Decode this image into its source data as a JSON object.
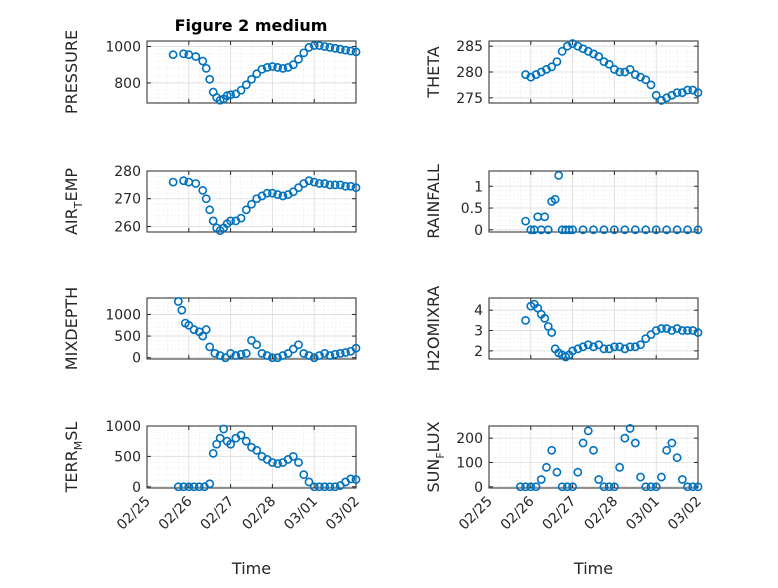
{
  "figure_title": "Figure 2 medium",
  "x_axis_title": "Time",
  "accent_color": "#0072BD",
  "x_tick_labels": [
    "02/25",
    "02/26",
    "02/27",
    "02/28",
    "03/01",
    "03/02"
  ],
  "chart_data": [
    {
      "type": "scatter",
      "id": "pressure",
      "ylabel": "PRESSURE",
      "xlim": [
        "02/25",
        "03/02"
      ],
      "ylim": [
        690,
        1030
      ],
      "yticks": [
        800,
        1000
      ],
      "grid": true,
      "x": [
        "02/25 15:00",
        "02/25 21:00",
        "02/26 00:00",
        "02/26 04:00",
        "02/26 08:00",
        "02/26 10:00",
        "02/26 12:00",
        "02/26 14:00",
        "02/26 16:00",
        "02/26 18:00",
        "02/26 20:00",
        "02/26 22:00",
        "02/27 00:00",
        "02/27 03:00",
        "02/27 06:00",
        "02/27 09:00",
        "02/27 12:00",
        "02/27 15:00",
        "02/27 18:00",
        "02/27 21:00",
        "02/28 00:00",
        "02/28 03:00",
        "02/28 06:00",
        "02/28 09:00",
        "02/28 12:00",
        "02/28 15:00",
        "02/28 18:00",
        "02/28 21:00",
        "03/01 00:00",
        "03/01 03:00",
        "03/01 06:00",
        "03/01 09:00",
        "03/01 12:00",
        "03/01 15:00",
        "03/01 18:00",
        "03/01 21:00",
        "03/02 00:00"
      ],
      "y": [
        955,
        960,
        955,
        945,
        920,
        880,
        820,
        750,
        720,
        705,
        712,
        730,
        735,
        740,
        760,
        790,
        820,
        850,
        875,
        885,
        890,
        885,
        880,
        885,
        900,
        930,
        965,
        995,
        1005,
        1005,
        1000,
        995,
        990,
        985,
        980,
        975,
        970
      ]
    },
    {
      "type": "scatter",
      "id": "theta",
      "ylabel": "THETA",
      "xlim": [
        "02/25",
        "03/02"
      ],
      "ylim": [
        274,
        286
      ],
      "yticks": [
        275,
        280,
        285
      ],
      "grid": true,
      "x": [
        "02/25 21:00",
        "02/26 00:00",
        "02/26 03:00",
        "02/26 06:00",
        "02/26 09:00",
        "02/26 12:00",
        "02/26 15:00",
        "02/26 18:00",
        "02/26 21:00",
        "02/27 00:00",
        "02/27 03:00",
        "02/27 06:00",
        "02/27 09:00",
        "02/27 12:00",
        "02/27 15:00",
        "02/27 18:00",
        "02/27 21:00",
        "02/28 00:00",
        "02/28 03:00",
        "02/28 06:00",
        "02/28 09:00",
        "02/28 12:00",
        "02/28 15:00",
        "02/28 18:00",
        "02/28 21:00",
        "03/01 00:00",
        "03/01 03:00",
        "03/01 06:00",
        "03/01 09:00",
        "03/01 12:00",
        "03/01 15:00",
        "03/01 18:00",
        "03/01 21:00",
        "03/02 00:00"
      ],
      "y": [
        279.5,
        279,
        279.5,
        280,
        280.5,
        281,
        282,
        284,
        285,
        285.5,
        285,
        284.5,
        284,
        283.5,
        283,
        282,
        281.5,
        280.5,
        280,
        280,
        280.5,
        279.5,
        279,
        278.5,
        277.5,
        275.5,
        274.5,
        275,
        275.5,
        276,
        276,
        276.5,
        276.5,
        276
      ]
    },
    {
      "type": "scatter",
      "id": "air_temp",
      "ylabel": "AIR_TEMP",
      "xlim": [
        "02/25",
        "03/02"
      ],
      "ylim": [
        258,
        280
      ],
      "yticks": [
        260,
        270,
        280
      ],
      "grid": true,
      "x": [
        "02/25 15:00",
        "02/25 21:00",
        "02/26 00:00",
        "02/26 04:00",
        "02/26 08:00",
        "02/26 10:00",
        "02/26 12:00",
        "02/26 14:00",
        "02/26 16:00",
        "02/26 18:00",
        "02/26 20:00",
        "02/26 22:00",
        "02/27 00:00",
        "02/27 03:00",
        "02/27 06:00",
        "02/27 09:00",
        "02/27 12:00",
        "02/27 15:00",
        "02/27 18:00",
        "02/27 21:00",
        "02/28 00:00",
        "02/28 03:00",
        "02/28 06:00",
        "02/28 09:00",
        "02/28 12:00",
        "02/28 15:00",
        "02/28 18:00",
        "02/28 21:00",
        "03/01 00:00",
        "03/01 03:00",
        "03/01 06:00",
        "03/01 09:00",
        "03/01 12:00",
        "03/01 15:00",
        "03/01 18:00",
        "03/01 21:00",
        "03/02 00:00"
      ],
      "y": [
        276,
        276.5,
        276,
        275.5,
        273,
        270,
        266,
        262,
        259.5,
        258.5,
        259.5,
        261,
        262,
        262,
        263,
        266,
        268,
        270,
        271,
        272,
        272,
        271.5,
        271,
        271.5,
        272.5,
        274,
        275.5,
        276.5,
        276,
        275.5,
        275.5,
        275,
        275,
        275,
        274.5,
        274.5,
        274
      ]
    },
    {
      "type": "scatter",
      "id": "rainfall",
      "ylabel": "RAINFALL",
      "xlim": [
        "02/25",
        "03/02"
      ],
      "ylim": [
        -0.05,
        1.35
      ],
      "yticks": [
        0,
        0.5,
        1
      ],
      "grid": true,
      "x": [
        "02/25 21:00",
        "02/26 00:00",
        "02/26 02:00",
        "02/26 04:00",
        "02/26 06:00",
        "02/26 08:00",
        "02/26 10:00",
        "02/26 12:00",
        "02/26 14:00",
        "02/26 16:00",
        "02/26 18:00",
        "02/26 20:00",
        "02/26 22:00",
        "02/27 00:00",
        "02/27 06:00",
        "02/27 12:00",
        "02/27 18:00",
        "02/28 00:00",
        "02/28 06:00",
        "02/28 12:00",
        "02/28 18:00",
        "03/01 00:00",
        "03/01 06:00",
        "03/01 12:00",
        "03/01 18:00",
        "03/02 00:00"
      ],
      "y": [
        0.2,
        0,
        0,
        0.3,
        0,
        0.3,
        0,
        0.65,
        0.7,
        1.25,
        0,
        0,
        0,
        0,
        0,
        0,
        0,
        0,
        0,
        0,
        0,
        0,
        0,
        0,
        0,
        0
      ]
    },
    {
      "type": "scatter",
      "id": "mixdepth",
      "ylabel": "MIXDEPTH",
      "xlim": [
        "02/25",
        "03/02"
      ],
      "ylim": [
        -30,
        1380
      ],
      "yticks": [
        0,
        500,
        1000
      ],
      "grid": true,
      "x": [
        "02/25 18:00",
        "02/25 20:00",
        "02/25 22:00",
        "02/26 00:00",
        "02/26 03:00",
        "02/26 06:00",
        "02/26 08:00",
        "02/26 10:00",
        "02/26 12:00",
        "02/26 15:00",
        "02/26 18:00",
        "02/26 21:00",
        "02/27 00:00",
        "02/27 03:00",
        "02/27 06:00",
        "02/27 09:00",
        "02/27 12:00",
        "02/27 15:00",
        "02/27 18:00",
        "02/27 21:00",
        "02/28 00:00",
        "02/28 03:00",
        "02/28 06:00",
        "02/28 09:00",
        "02/28 12:00",
        "02/28 15:00",
        "02/28 18:00",
        "02/28 21:00",
        "03/01 00:00",
        "03/01 03:00",
        "03/01 06:00",
        "03/01 09:00",
        "03/01 12:00",
        "03/01 15:00",
        "03/01 18:00",
        "03/01 21:00",
        "03/02 00:00"
      ],
      "y": [
        1300,
        1100,
        800,
        750,
        650,
        600,
        500,
        650,
        250,
        100,
        50,
        0,
        100,
        50,
        80,
        100,
        400,
        300,
        100,
        50,
        0,
        0,
        50,
        100,
        200,
        300,
        100,
        50,
        0,
        50,
        100,
        50,
        80,
        100,
        120,
        150,
        220
      ]
    },
    {
      "type": "scatter",
      "id": "h2omixra",
      "ylabel": "H2OMIXRA",
      "xlim": [
        "02/25",
        "03/02"
      ],
      "ylim": [
        1.6,
        4.6
      ],
      "yticks": [
        2,
        3,
        4
      ],
      "grid": true,
      "x": [
        "02/25 21:00",
        "02/26 00:00",
        "02/26 02:00",
        "02/26 04:00",
        "02/26 06:00",
        "02/26 08:00",
        "02/26 10:00",
        "02/26 12:00",
        "02/26 14:00",
        "02/26 16:00",
        "02/26 18:00",
        "02/26 20:00",
        "02/26 22:00",
        "02/27 00:00",
        "02/27 03:00",
        "02/27 06:00",
        "02/27 09:00",
        "02/27 12:00",
        "02/27 15:00",
        "02/27 18:00",
        "02/27 21:00",
        "02/28 00:00",
        "02/28 03:00",
        "02/28 06:00",
        "02/28 09:00",
        "02/28 12:00",
        "02/28 15:00",
        "02/28 18:00",
        "02/28 21:00",
        "03/01 00:00",
        "03/01 03:00",
        "03/01 06:00",
        "03/01 09:00",
        "03/01 12:00",
        "03/01 15:00",
        "03/01 18:00",
        "03/01 21:00",
        "03/02 00:00"
      ],
      "y": [
        3.5,
        4.2,
        4.3,
        4.1,
        3.8,
        3.6,
        3.2,
        2.9,
        2.1,
        1.9,
        1.8,
        1.7,
        1.8,
        2,
        2.1,
        2.2,
        2.3,
        2.2,
        2.3,
        2.1,
        2.1,
        2.2,
        2.2,
        2.1,
        2.2,
        2.2,
        2.3,
        2.6,
        2.8,
        3.0,
        3.1,
        3.1,
        3.0,
        3.1,
        3.0,
        3.0,
        3.0,
        2.9
      ]
    },
    {
      "type": "scatter",
      "id": "terr_msl",
      "ylabel": "TERR_MSL",
      "xlim": [
        "02/25",
        "03/02"
      ],
      "ylim": [
        -20,
        1000
      ],
      "yticks": [
        0,
        500,
        1000
      ],
      "grid": true,
      "x": [
        "02/25 18:00",
        "02/25 21:00",
        "02/26 00:00",
        "02/26 03:00",
        "02/26 06:00",
        "02/26 09:00",
        "02/26 12:00",
        "02/26 14:00",
        "02/26 16:00",
        "02/26 18:00",
        "02/26 20:00",
        "02/26 22:00",
        "02/27 00:00",
        "02/27 03:00",
        "02/27 06:00",
        "02/27 09:00",
        "02/27 12:00",
        "02/27 15:00",
        "02/27 18:00",
        "02/27 21:00",
        "02/28 00:00",
        "02/28 03:00",
        "02/28 06:00",
        "02/28 09:00",
        "02/28 12:00",
        "02/28 15:00",
        "02/28 18:00",
        "02/28 21:00",
        "03/01 00:00",
        "03/01 03:00",
        "03/01 06:00",
        "03/01 09:00",
        "03/01 12:00",
        "03/01 15:00",
        "03/01 18:00",
        "03/01 21:00",
        "03/02 00:00"
      ],
      "y": [
        0,
        0,
        0,
        0,
        0,
        0,
        50,
        550,
        700,
        800,
        950,
        750,
        700,
        800,
        850,
        750,
        650,
        600,
        500,
        450,
        400,
        380,
        400,
        450,
        500,
        400,
        200,
        80,
        0,
        0,
        0,
        0,
        0,
        20,
        80,
        130,
        120
      ]
    },
    {
      "type": "scatter",
      "id": "sun_flux",
      "ylabel": "SUN_FLUX",
      "xlim": [
        "02/25",
        "03/02"
      ],
      "ylim": [
        -5,
        250
      ],
      "yticks": [
        0,
        100,
        200
      ],
      "grid": true,
      "x": [
        "02/25 18:00",
        "02/25 21:00",
        "02/26 00:00",
        "02/26 03:00",
        "02/26 06:00",
        "02/26 09:00",
        "02/26 12:00",
        "02/26 15:00",
        "02/26 18:00",
        "02/26 21:00",
        "02/27 00:00",
        "02/27 03:00",
        "02/27 06:00",
        "02/27 09:00",
        "02/27 12:00",
        "02/27 15:00",
        "02/27 18:00",
        "02/27 21:00",
        "02/28 00:00",
        "02/28 03:00",
        "02/28 06:00",
        "02/28 09:00",
        "02/28 12:00",
        "02/28 15:00",
        "02/28 18:00",
        "02/28 21:00",
        "03/01 00:00",
        "03/01 03:00",
        "03/01 06:00",
        "03/01 09:00",
        "03/01 12:00",
        "03/01 15:00",
        "03/01 18:00",
        "03/01 21:00",
        "03/02 00:00"
      ],
      "y": [
        0,
        0,
        0,
        0,
        30,
        80,
        150,
        60,
        0,
        0,
        0,
        60,
        180,
        230,
        150,
        30,
        0,
        0,
        0,
        80,
        200,
        240,
        180,
        40,
        0,
        0,
        0,
        40,
        150,
        180,
        120,
        30,
        0,
        0,
        0
      ]
    }
  ]
}
